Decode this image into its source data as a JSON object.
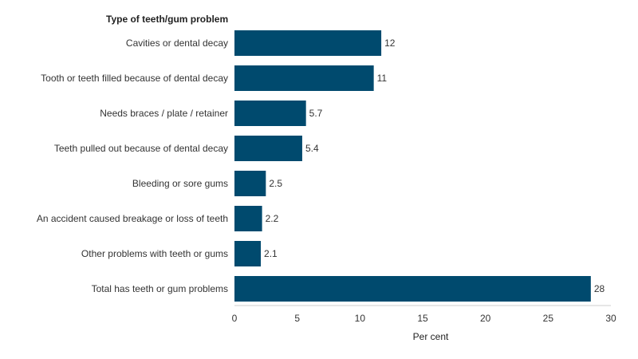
{
  "chart_data": {
    "type": "bar",
    "orientation": "horizontal",
    "category_axis_title": "Type of teeth/gum problem",
    "xlabel": "Per cent",
    "categories": [
      "Cavities or dental decay",
      "Tooth or teeth filled because of dental decay",
      "Needs braces / plate / retainer",
      "Teeth pulled out because of dental decay",
      "Bleeding or sore gums",
      "An accident caused breakage or loss of teeth",
      "Other problems with teeth or gums",
      "Total has teeth or gum problems"
    ],
    "values": [
      11.7,
      11.1,
      5.7,
      5.4,
      2.5,
      2.2,
      2.1,
      28.4
    ],
    "value_labels": [
      "12",
      "11",
      "5.7",
      "5.4",
      "2.5",
      "2.2",
      "2.1",
      "28"
    ],
    "xlim": [
      0,
      30
    ],
    "xticks": [
      0,
      5,
      10,
      15,
      20,
      25,
      30
    ],
    "grid": false,
    "legend": "none",
    "bar_color": "#004a6e"
  }
}
